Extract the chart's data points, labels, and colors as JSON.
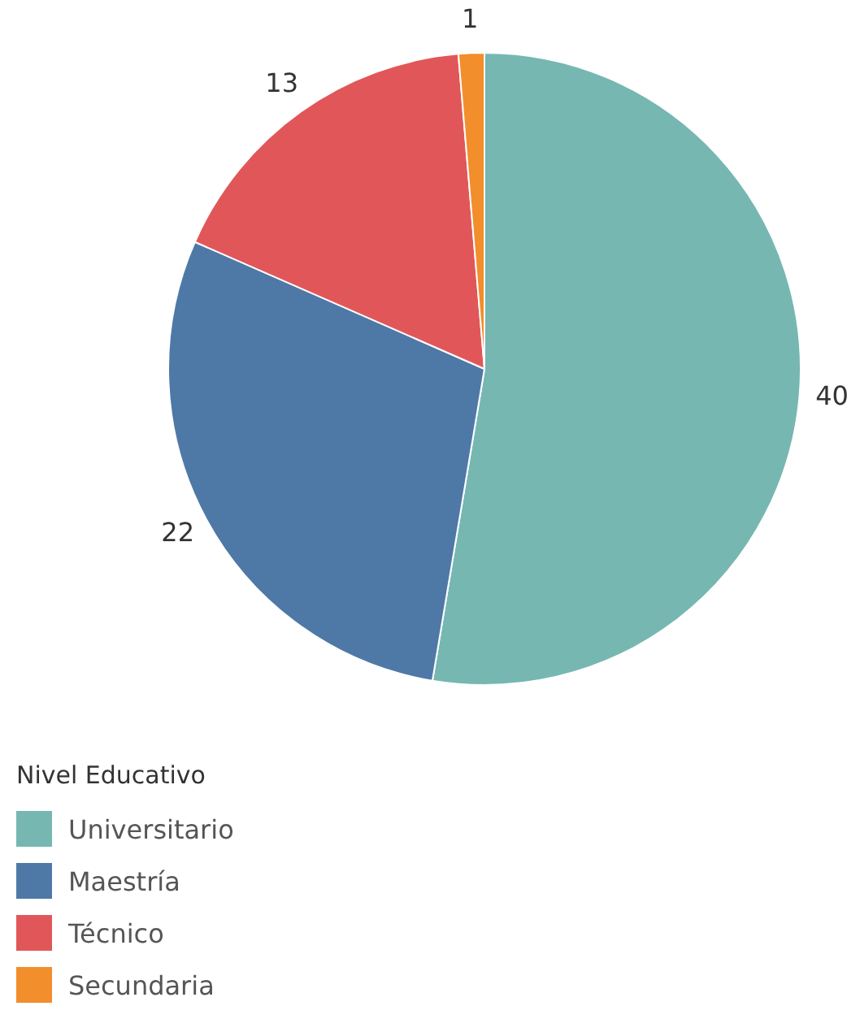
{
  "chart_data": {
    "type": "pie",
    "legend_title": "Nivel Educativo",
    "legend": "bottom left",
    "data_labels": true,
    "categories": [
      "Universitario",
      "Maestría",
      "Técnico",
      "Secundaria"
    ],
    "values": [
      40,
      22,
      13,
      1
    ],
    "colors": [
      "#76b7b2",
      "#4e79a7",
      "#e15759",
      "#f28e2b"
    ]
  }
}
